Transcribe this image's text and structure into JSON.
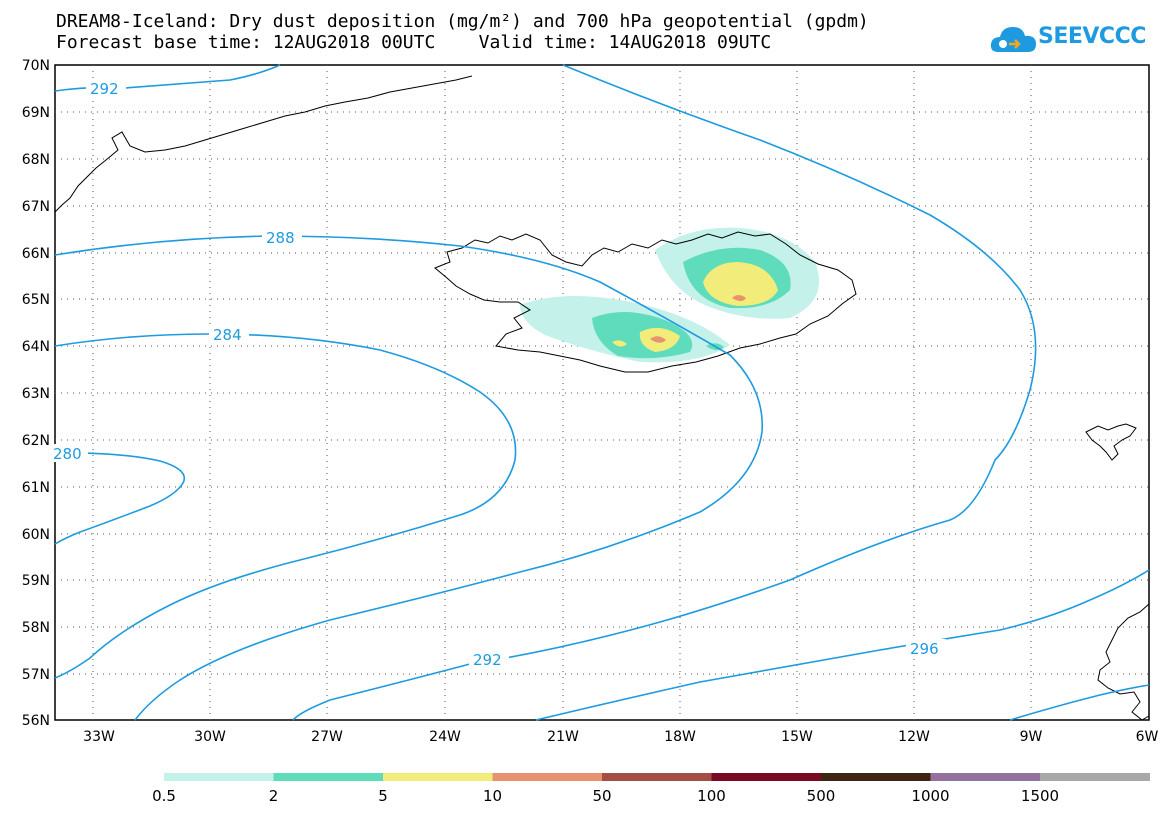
{
  "title_line1": "DREAM8-Iceland: Dry dust deposition (mg/m²) and 700 hPa geopotential (gpdm)",
  "title_line2": "Forecast base time: 12AUG2018 00UTC    Valid time: 14AUG2018 09UTC",
  "logo_text": "SEEVCCC",
  "colors": {
    "contour": "#1e9be0",
    "coast": "#000000",
    "grid": "#555555"
  },
  "lat_labels": [
    "70N",
    "69N",
    "68N",
    "67N",
    "66N",
    "65N",
    "64N",
    "63N",
    "62N",
    "61N",
    "60N",
    "59N",
    "58N",
    "57N",
    "56N"
  ],
  "lon_labels": [
    "33W",
    "30W",
    "27W",
    "24W",
    "21W",
    "18W",
    "15W",
    "12W",
    "9W",
    "6W"
  ],
  "contour_labels": [
    "292",
    "288",
    "284",
    "280",
    "292",
    "296"
  ],
  "legend": {
    "colors": [
      "#c4f1ea",
      "#5fdcbc",
      "#f2ec7a",
      "#e79370",
      "#a44f46",
      "#7a0a24",
      "#3e2712",
      "#93719f",
      "#a8a8a8"
    ],
    "labels": [
      "0.5",
      "2",
      "5",
      "10",
      "50",
      "100",
      "500",
      "1000",
      "1500"
    ]
  }
}
